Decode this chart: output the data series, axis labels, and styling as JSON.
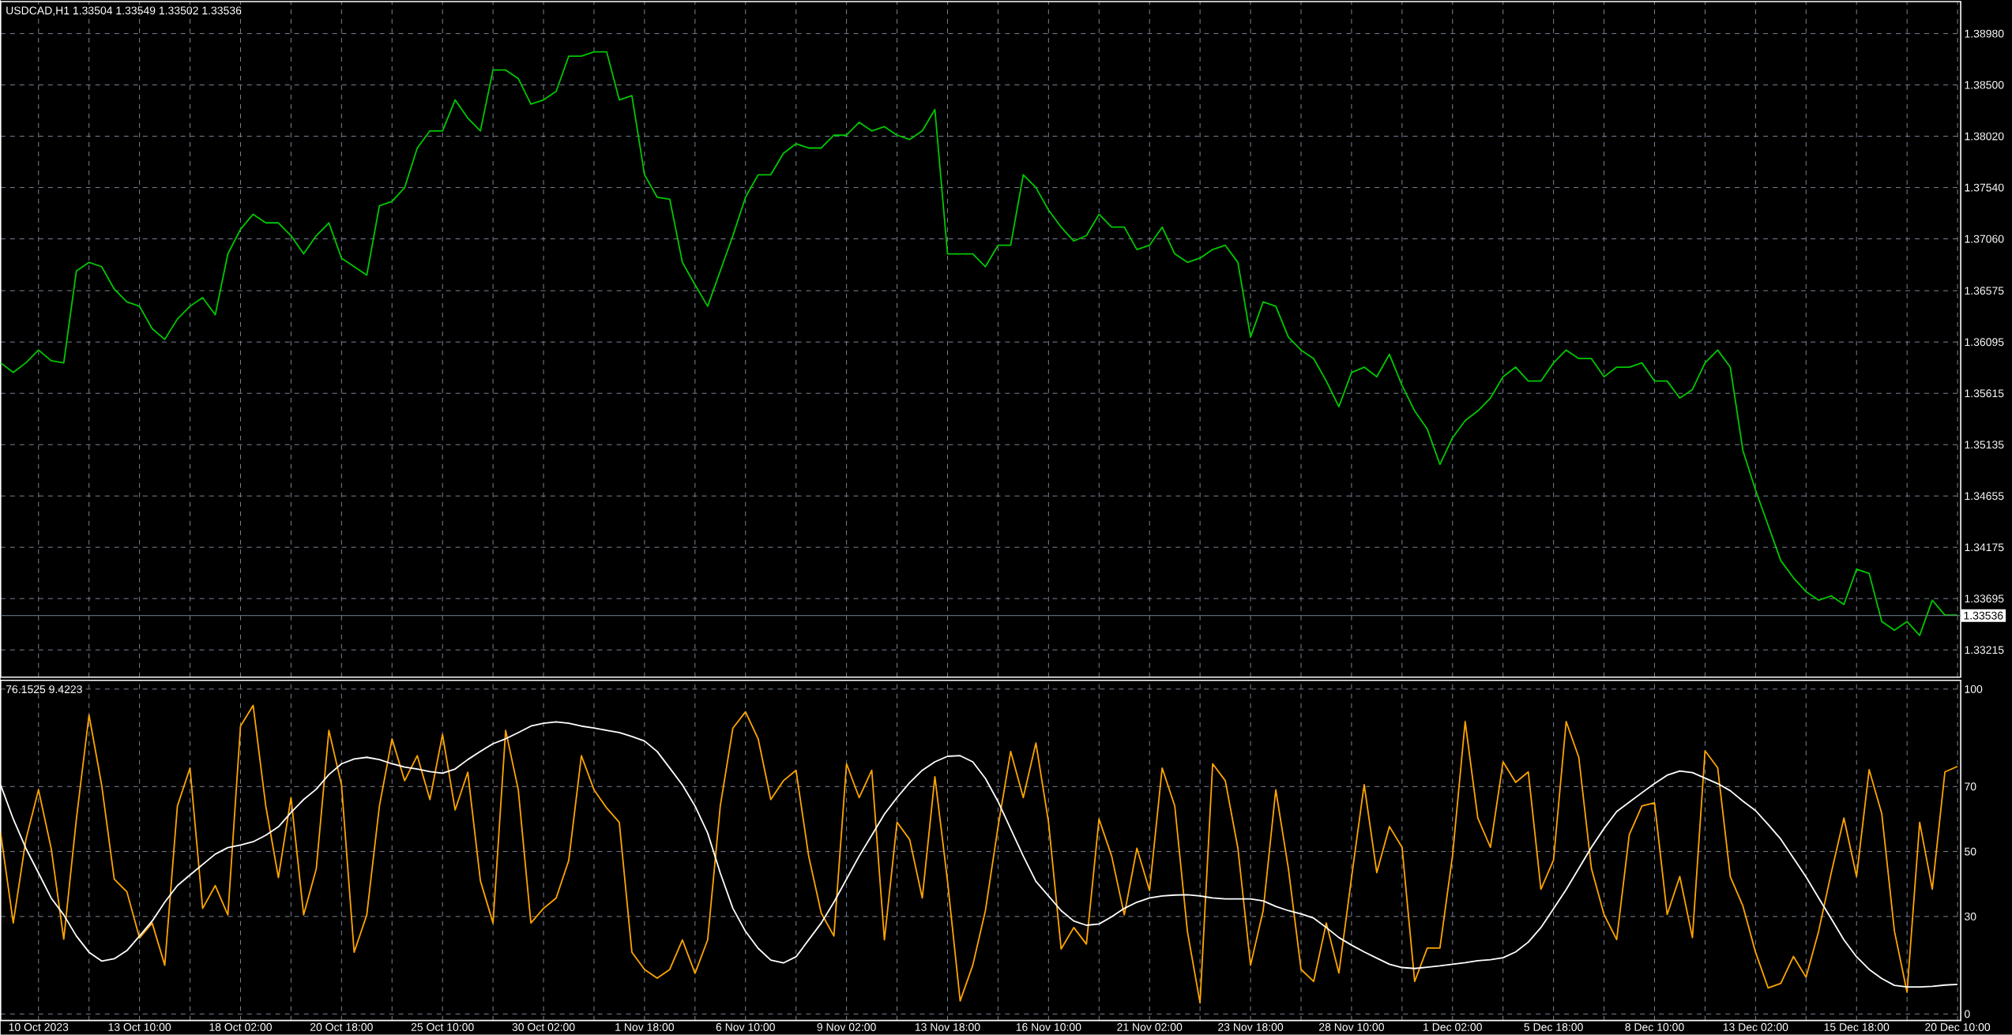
{
  "chart_data": [
    {
      "type": "line",
      "title": "USDCAD,H1 1.33504 1.33549 1.33502 1.33536",
      "categories": [
        null,
        null,
        null,
        null,
        null,
        null,
        null,
        null,
        null,
        null,
        null,
        null,
        null,
        null,
        null,
        null,
        null,
        null,
        null,
        null,
        null,
        null,
        null,
        null,
        null,
        null,
        null,
        null,
        null,
        null,
        null,
        null,
        null,
        null,
        null,
        null,
        null,
        null,
        null,
        null,
        null,
        null,
        null,
        null,
        null,
        null,
        null,
        null,
        null,
        null,
        null,
        null,
        null,
        null,
        null,
        null,
        null,
        null,
        null,
        null,
        null,
        null,
        null,
        null,
        null,
        null,
        null,
        null,
        null,
        null,
        null,
        null,
        null,
        null,
        null,
        null,
        null,
        null,
        null,
        null,
        null,
        null,
        null,
        null,
        null,
        null,
        null,
        null,
        null,
        null,
        null,
        null,
        null,
        null,
        null,
        null,
        null,
        null,
        null,
        null,
        null,
        null,
        null,
        null,
        null,
        null,
        null,
        null,
        null,
        null,
        null,
        null,
        null,
        null,
        null,
        null,
        null,
        null,
        null,
        null,
        null,
        null,
        null,
        null,
        null,
        null,
        null,
        null,
        null,
        null,
        null,
        null,
        null,
        null,
        null,
        null,
        null,
        null,
        null,
        null,
        null,
        null,
        null,
        null,
        null,
        null,
        null,
        null,
        null,
        null,
        null,
        null,
        null,
        null,
        null,
        null
      ],
      "series": [
        {
          "color": "#00c800",
          "values": [
            1.359,
            1.3581,
            1.359,
            1.3602,
            1.3592,
            1.359,
            1.3676,
            1.3684,
            1.368,
            1.3659,
            1.3647,
            1.3643,
            1.3622,
            1.3612,
            1.3631,
            1.3643,
            1.3651,
            1.3635,
            1.3692,
            1.3715,
            1.3729,
            1.3721,
            1.3721,
            1.3709,
            1.3692,
            1.3709,
            1.3721,
            1.3688,
            1.368,
            1.3672,
            1.3737,
            1.3741,
            1.3754,
            1.3791,
            1.3807,
            1.3807,
            1.3836,
            1.3819,
            1.3807,
            1.3864,
            1.3864,
            1.3856,
            1.3832,
            1.3836,
            1.3844,
            1.3877,
            1.3877,
            1.3881,
            1.3881,
            1.3836,
            1.384,
            1.3766,
            1.3745,
            1.3743,
            1.3684,
            1.3663,
            1.3643,
            1.3676,
            1.3709,
            1.3745,
            1.3766,
            1.3766,
            1.3786,
            1.3795,
            1.3791,
            1.3791,
            1.3803,
            1.3803,
            1.3815,
            1.3807,
            1.3811,
            1.3803,
            1.3799,
            1.3807,
            1.3827,
            1.3692,
            1.3692,
            1.3692,
            1.368,
            1.37,
            1.37,
            1.3766,
            1.3754,
            1.3733,
            1.3717,
            1.3704,
            1.3709,
            1.3729,
            1.3717,
            1.3717,
            1.3696,
            1.37,
            1.3717,
            1.3692,
            1.3684,
            1.3688,
            1.3696,
            1.37,
            1.3684,
            1.3614,
            1.3647,
            1.3643,
            1.3614,
            1.3602,
            1.3594,
            1.3573,
            1.3549,
            1.3581,
            1.3586,
            1.3577,
            1.3598,
            1.3569,
            1.3545,
            1.3528,
            1.3495,
            1.352,
            1.3536,
            1.3545,
            1.3557,
            1.3577,
            1.3586,
            1.3573,
            1.3573,
            1.359,
            1.3602,
            1.3594,
            1.3594,
            1.3577,
            1.3586,
            1.3586,
            1.359,
            1.3573,
            1.3573,
            1.3557,
            1.3565,
            1.359,
            1.3602,
            1.3586,
            1.3508,
            1.3471,
            1.3438,
            1.3405,
            1.3389,
            1.3376,
            1.3368,
            1.3372,
            1.3364,
            1.3397,
            1.3393,
            1.3348,
            1.334,
            1.3348,
            1.3335,
            1.3368,
            1.3354,
            1.3354
          ]
        }
      ],
      "ylim": [
        1.3296,
        1.3928
      ],
      "yticks": [
        {
          "value": 1.3898,
          "label": "1.38980"
        },
        {
          "value": 1.385,
          "label": "1.38500"
        },
        {
          "value": 1.3802,
          "label": "1.38020"
        },
        {
          "value": 1.3754,
          "label": "1.37540"
        },
        {
          "value": 1.3706,
          "label": "1.37060"
        },
        {
          "value": 1.36575,
          "label": "1.36575"
        },
        {
          "value": 1.36095,
          "label": "1.36095"
        },
        {
          "value": 1.35615,
          "label": "1.35615"
        },
        {
          "value": 1.35135,
          "label": "1.35135"
        },
        {
          "value": 1.34655,
          "label": "1.34655"
        },
        {
          "value": 1.34175,
          "label": "1.34175"
        },
        {
          "value": 1.33695,
          "label": "1.33695"
        },
        {
          "value": 1.33215,
          "label": "1.33215"
        }
      ],
      "ref_lines": [
        {
          "axis": "y",
          "value": 1.33536,
          "label": "1.33536",
          "color": "#778899"
        }
      ],
      "grid": true,
      "tick_labels": "y"
    },
    {
      "type": "line",
      "title": "76.1525 9.4223",
      "categories": [
        null,
        null,
        null,
        "10 Oct 2023",
        null,
        null,
        null,
        null,
        null,
        null,
        null,
        "13 Oct 10:00",
        null,
        null,
        null,
        null,
        null,
        null,
        null,
        "18 Oct 02:00",
        null,
        null,
        null,
        null,
        null,
        null,
        null,
        "20 Oct 18:00",
        null,
        null,
        null,
        null,
        null,
        null,
        null,
        "25 Oct 10:00",
        null,
        null,
        null,
        null,
        null,
        null,
        null,
        "30 Oct 02:00",
        null,
        null,
        null,
        null,
        null,
        null,
        null,
        "1 Nov 18:00",
        null,
        null,
        null,
        null,
        null,
        null,
        null,
        "6 Nov 10:00",
        null,
        null,
        null,
        null,
        null,
        null,
        null,
        "9 Nov 02:00",
        null,
        null,
        null,
        null,
        null,
        null,
        null,
        "13 Nov 18:00",
        null,
        null,
        null,
        null,
        null,
        null,
        null,
        "16 Nov 10:00",
        null,
        null,
        null,
        null,
        null,
        null,
        null,
        "21 Nov 02:00",
        null,
        null,
        null,
        null,
        null,
        null,
        null,
        "23 Nov 18:00",
        null,
        null,
        null,
        null,
        null,
        null,
        null,
        "28 Nov 10:00",
        null,
        null,
        null,
        null,
        null,
        null,
        null,
        "1 Dec 02:00",
        null,
        null,
        null,
        null,
        null,
        null,
        null,
        "5 Dec 18:00",
        null,
        null,
        null,
        null,
        null,
        null,
        null,
        "8 Dec 10:00",
        null,
        null,
        null,
        null,
        null,
        null,
        null,
        "13 Dec 02:00",
        null,
        null,
        null,
        null,
        null,
        null,
        null,
        "15 Dec 18:00",
        null,
        null,
        null,
        null,
        null,
        null,
        null,
        "20 Dec 10:00"
      ],
      "series": [
        {
          "color": "#ffa500",
          "values": [
            55.7,
            28,
            53.7,
            69,
            51,
            23,
            60,
            92,
            70.5,
            41.5,
            37.6,
            23.4,
            28,
            15,
            64,
            75.7,
            32.5,
            39.5,
            30.5,
            88.6,
            95,
            64,
            42,
            66.6,
            30.5,
            44.7,
            87.3,
            70.5,
            19,
            30.5,
            64,
            84.7,
            71.8,
            79.5,
            66,
            86,
            62.8,
            74.4,
            41,
            28,
            87.3,
            69,
            28,
            32.5,
            35.7,
            47.3,
            79.5,
            69,
            63.4,
            59,
            19,
            13.7,
            11,
            13.7,
            22.8,
            12.5,
            22.8,
            64,
            88,
            93,
            84.7,
            66,
            71.8,
            75,
            48.6,
            31,
            24,
            77,
            66.6,
            75,
            22.8,
            59,
            53.7,
            35.7,
            73,
            40.8,
            4,
            15,
            31.8,
            57.6,
            80.8,
            66.6,
            83.4,
            59,
            20,
            26.6,
            21.5,
            60,
            48.6,
            30.5,
            51,
            38,
            75.7,
            64,
            25.4,
            3.4,
            77,
            71.8,
            51,
            15,
            31.8,
            69,
            44.7,
            13.7,
            10,
            28,
            12.6,
            42,
            70.6,
            43.5,
            57.7,
            51.3,
            10,
            20.3,
            20.3,
            48.7,
            90,
            60.3,
            51.3,
            77.6,
            71.3,
            74.5,
            38.4,
            47.4,
            90,
            79,
            44.8,
            30.6,
            22.9,
            55.2,
            64,
            65,
            30.6,
            42.3,
            23.5,
            81,
            75.8,
            42.3,
            33.2,
            19,
            8,
            9.4,
            17.7,
            11.3,
            25.5,
            43.5,
            60.3,
            42.3,
            75.2,
            61.6,
            25.5,
            6.7,
            59,
            38.4,
            74.5,
            76.2
          ]
        },
        {
          "color": "#ffffff",
          "values": [
            70.5,
            60,
            51,
            43.4,
            35.7,
            30.5,
            24,
            19,
            16.3,
            17,
            19.5,
            24,
            28.6,
            34.4,
            39.5,
            42.8,
            46,
            49.2,
            51.2,
            52,
            53,
            55,
            57.6,
            62,
            66,
            69.2,
            73.7,
            77,
            78.5,
            79,
            78.3,
            77,
            76,
            75.4,
            74.6,
            74.1,
            75.4,
            78.3,
            80.8,
            83.2,
            84.7,
            86.6,
            88.6,
            89.5,
            89.9,
            89.5,
            88.6,
            88,
            87.3,
            86.6,
            85.4,
            84,
            80.8,
            75.7,
            70.5,
            64,
            55.7,
            43.4,
            32.5,
            25.4,
            20.2,
            16.6,
            15.7,
            17.6,
            22.8,
            28,
            34.4,
            41.5,
            48.6,
            55,
            61.5,
            66.6,
            71.2,
            75,
            77.6,
            79.3,
            79.5,
            77.6,
            72.5,
            65.4,
            57,
            48.6,
            40.8,
            36.3,
            31.8,
            28.6,
            27.3,
            27.7,
            29.9,
            32.5,
            34.4,
            35.7,
            36.3,
            36.6,
            36.7,
            36.3,
            35.7,
            35.4,
            35.4,
            35.4,
            34.8,
            33.1,
            31.8,
            30.8,
            29.5,
            26.6,
            23.5,
            21.2,
            19.1,
            17.2,
            15.3,
            14.3,
            14,
            14.4,
            14.8,
            15.3,
            15.8,
            16.4,
            16.7,
            17.3,
            19.1,
            22.1,
            26.6,
            32.4,
            38.3,
            44.8,
            51.3,
            57.1,
            62.3,
            65.2,
            68.1,
            70.9,
            73.5,
            74.8,
            74.3,
            72.6,
            70.9,
            68.7,
            65.5,
            62.6,
            58.3,
            53.8,
            48,
            42.2,
            35.7,
            29.3,
            22.8,
            17.6,
            13.7,
            10.9,
            8.8,
            8.3,
            8.3,
            8.5,
            8.9,
            9.1
          ]
        }
      ],
      "ylim": [
        -2,
        102.7
      ],
      "yticks": [
        100,
        70,
        50,
        30,
        0
      ],
      "grid": true
    }
  ]
}
